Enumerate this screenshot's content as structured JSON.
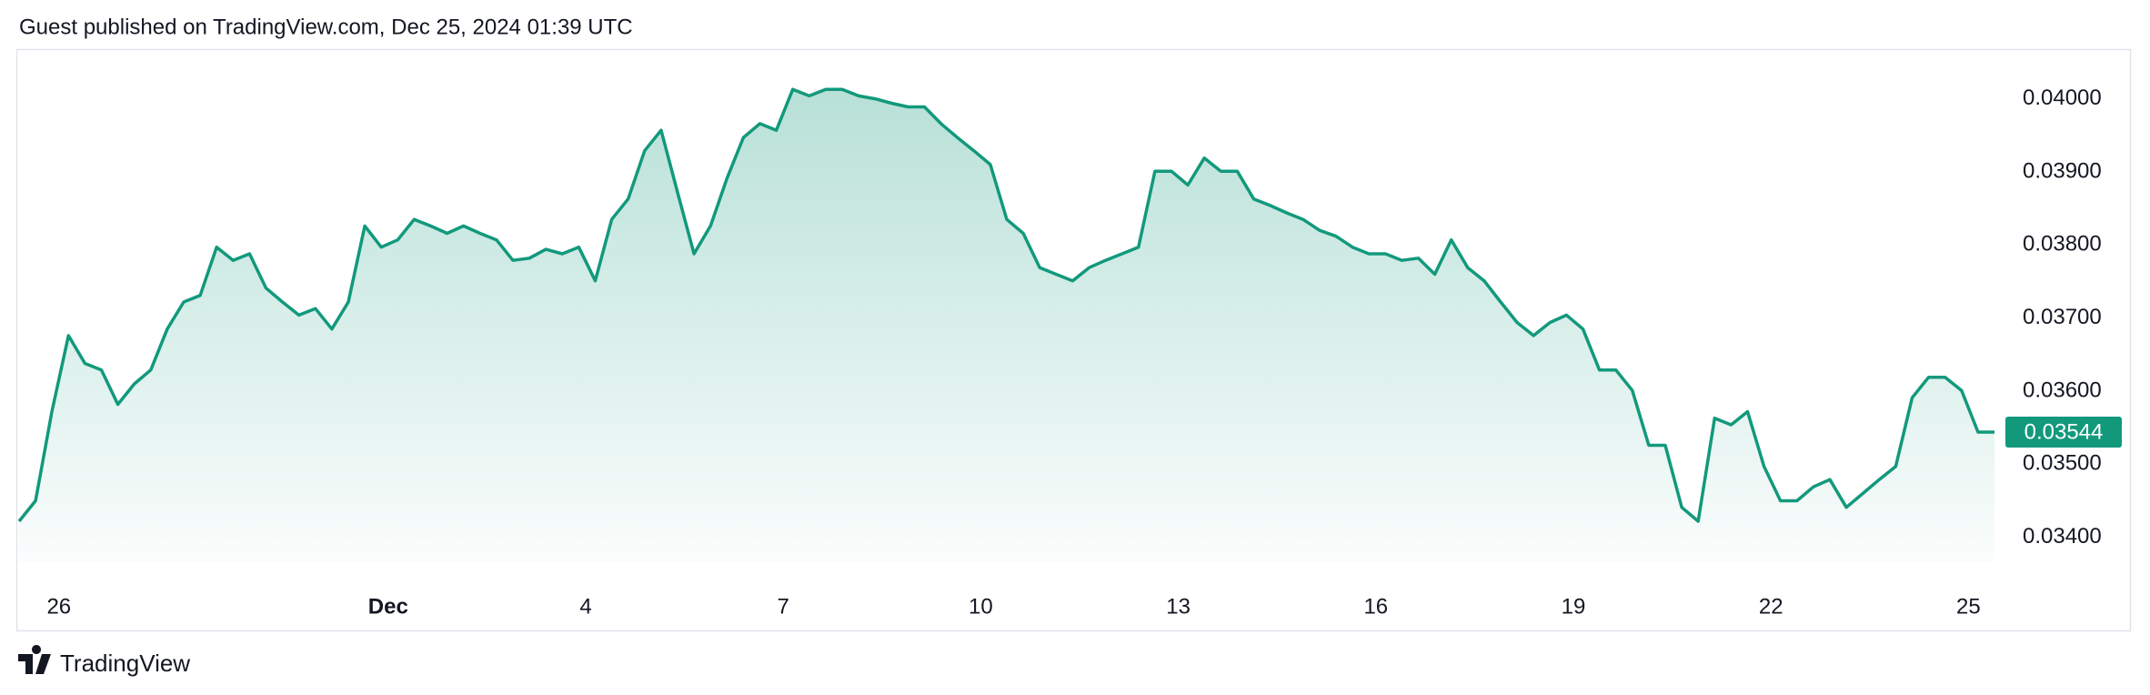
{
  "header": "Guest published on TradingView.com, Dec 25, 2024 01:39 UTC",
  "chart_data": {
    "type": "area",
    "series": [
      {
        "color": "#12997c",
        "values": [
          0.03422,
          0.0345,
          0.03573,
          0.03676,
          0.03638,
          0.03629,
          0.03582,
          0.0361,
          0.03629,
          0.03685,
          0.03722,
          0.03731,
          0.03797,
          0.03779,
          0.03788,
          0.03741,
          0.03722,
          0.03704,
          0.03713,
          0.03685,
          0.03722,
          0.03826,
          0.03797,
          0.03807,
          0.03835,
          0.03826,
          0.03816,
          0.03826,
          0.03816,
          0.03807,
          0.03779,
          0.03782,
          0.03794,
          0.03788,
          0.03797,
          0.03751,
          0.03835,
          0.03863,
          0.03929,
          0.03957,
          0.03872,
          0.03788,
          0.03826,
          0.03891,
          0.03947,
          0.03966,
          0.03957,
          0.04013,
          0.04004,
          0.04013,
          0.04013,
          0.04004,
          0.04,
          0.03994,
          0.03989,
          0.03989,
          0.03966,
          0.03947,
          0.03929,
          0.0391,
          0.03835,
          0.03816,
          0.03769,
          0.0376,
          0.03751,
          0.03769,
          0.03779,
          0.03788,
          0.03797,
          0.03901,
          0.03901,
          0.03882,
          0.03919,
          0.03901,
          0.03901,
          0.03863,
          0.03854,
          0.03844,
          0.03835,
          0.0382,
          0.03812,
          0.03797,
          0.03788,
          0.03788,
          0.03779,
          0.03782,
          0.0376,
          0.03807,
          0.03769,
          0.03751,
          0.03722,
          0.03694,
          0.03676,
          0.03694,
          0.03704,
          0.03685,
          0.03629,
          0.03629,
          0.03601,
          0.03526,
          0.03526,
          0.03441,
          0.03422,
          0.03563,
          0.03554,
          0.03572,
          0.03497,
          0.0345,
          0.0345,
          0.03469,
          0.03479,
          0.03441,
          0.0346,
          0.03479,
          0.03497,
          0.03591,
          0.03619,
          0.03619,
          0.03601,
          0.03544,
          0.03544
        ]
      }
    ],
    "xlim": [
      0,
      120
    ],
    "xticks": [
      {
        "value": 2.42,
        "label": "26"
      },
      {
        "value": 22.42,
        "label": "Dec"
      },
      {
        "value": 34.42,
        "label": "4"
      },
      {
        "value": 46.42,
        "label": "7"
      },
      {
        "value": 58.42,
        "label": "10"
      },
      {
        "value": 70.42,
        "label": "13"
      },
      {
        "value": 82.42,
        "label": "16"
      },
      {
        "value": 94.42,
        "label": "19"
      },
      {
        "value": 106.42,
        "label": "22"
      },
      {
        "value": 118.42,
        "label": "25"
      }
    ],
    "ylim": [
      0.03366,
      0.04068
    ],
    "yticks": [
      {
        "value": 0.04,
        "label": "0.04000"
      },
      {
        "value": 0.039,
        "label": "0.03900"
      },
      {
        "value": 0.038,
        "label": "0.03800"
      },
      {
        "value": 0.037,
        "label": "0.03700"
      },
      {
        "value": 0.036,
        "label": "0.03600"
      },
      {
        "value": 0.035,
        "label": "0.03500"
      },
      {
        "value": 0.034,
        "label": "0.03400"
      }
    ],
    "grid": false
  },
  "footer": {
    "brand": "TradingView"
  }
}
